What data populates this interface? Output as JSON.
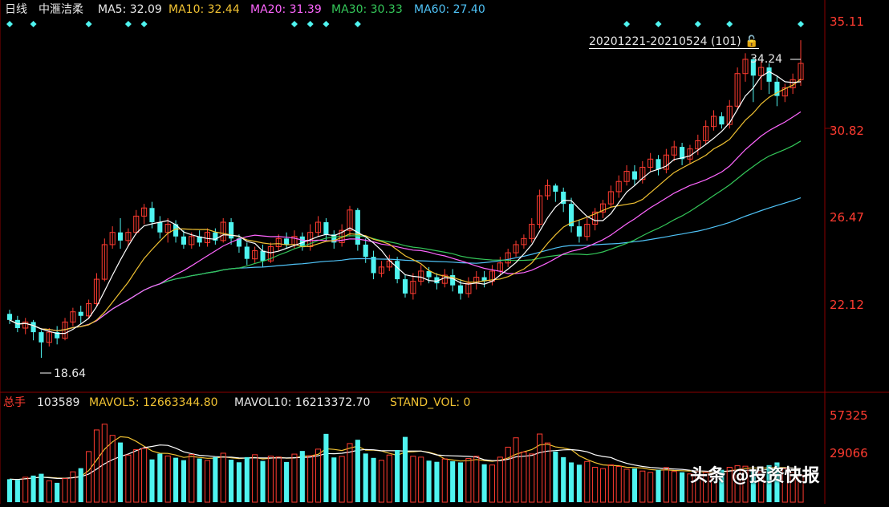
{
  "header": {
    "period": "日线",
    "stock": "中滙洁柔",
    "ma5_label": "MA5:",
    "ma5": "32.09",
    "ma10_label": "MA10:",
    "ma10": "32.44",
    "ma20_label": "MA20:",
    "ma20": "31.39",
    "ma30_label": "MA30:",
    "ma30": "30.33",
    "ma60_label": "MA60:",
    "ma60": "27.40"
  },
  "range_label": "20201221-20210524 (101)",
  "high_label": "34.24",
  "low_label": "18.64",
  "price_axis": [
    "35.11",
    "30.82",
    "26.47",
    "22.12"
  ],
  "volume_header": {
    "label": "总手",
    "total": "103589",
    "mavol5_label": "MAVOL5:",
    "mavol5": "12663344.80",
    "mavol10_label": "MAVOL10:",
    "mavol10": "16213372.70",
    "stand_label": "STAND_VOL:",
    "stand": "0"
  },
  "volume_axis": [
    "57325",
    "29066"
  ],
  "watermark": "头条 @投资快报",
  "colors": {
    "up": "#ff3b30",
    "down": "#4ff4f0",
    "ma5": "#ffffff",
    "ma10": "#f1c232",
    "ma20": "#ff66ff",
    "ma30": "#34c759",
    "ma60": "#4fc3f7",
    "grid": "#8b0000"
  },
  "chart_data": {
    "type": "candlestick",
    "price_ylim": [
      17.5,
      35.11
    ],
    "volume_ylim": [
      0,
      57325
    ],
    "candles": [
      [
        20.8,
        20.5,
        21.0,
        20.3
      ],
      [
        20.5,
        20.1,
        20.7,
        19.9
      ],
      [
        20.1,
        20.4,
        20.6,
        19.8
      ],
      [
        20.4,
        19.9,
        20.5,
        19.5
      ],
      [
        19.9,
        19.4,
        20.0,
        18.64
      ],
      [
        19.4,
        19.9,
        20.1,
        19.2
      ],
      [
        19.9,
        19.6,
        20.2,
        19.3
      ],
      [
        19.6,
        20.4,
        20.6,
        19.5
      ],
      [
        20.4,
        20.9,
        21.1,
        20.2
      ],
      [
        20.9,
        20.7,
        21.2,
        20.3
      ],
      [
        20.7,
        21.3,
        21.5,
        20.6
      ],
      [
        21.3,
        22.5,
        22.8,
        21.2
      ],
      [
        22.5,
        24.2,
        24.5,
        22.4
      ],
      [
        24.2,
        24.8,
        25.1,
        24.0
      ],
      [
        24.8,
        24.4,
        25.5,
        24.0
      ],
      [
        24.4,
        24.8,
        25.0,
        24.1
      ],
      [
        24.8,
        25.6,
        25.9,
        24.7
      ],
      [
        25.6,
        26.0,
        26.2,
        25.2
      ],
      [
        26.0,
        25.3,
        26.3,
        25.0
      ],
      [
        25.3,
        24.8,
        25.6,
        24.5
      ],
      [
        24.8,
        25.2,
        25.5,
        24.3
      ],
      [
        25.2,
        24.6,
        25.4,
        24.3
      ],
      [
        24.6,
        24.2,
        24.9,
        24.0
      ],
      [
        24.2,
        24.6,
        24.8,
        24.0
      ],
      [
        24.6,
        24.3,
        24.9,
        24.1
      ],
      [
        24.3,
        24.8,
        25.0,
        24.1
      ],
      [
        24.8,
        24.4,
        25.0,
        24.2
      ],
      [
        24.4,
        25.3,
        25.5,
        24.3
      ],
      [
        25.3,
        24.5,
        25.5,
        24.2
      ],
      [
        24.5,
        24.1,
        24.7,
        23.8
      ],
      [
        24.1,
        23.5,
        24.3,
        23.2
      ],
      [
        23.5,
        23.9,
        24.1,
        23.3
      ],
      [
        23.9,
        23.4,
        24.2,
        23.1
      ],
      [
        23.4,
        24.1,
        24.3,
        23.3
      ],
      [
        24.1,
        24.5,
        24.7,
        23.9
      ],
      [
        24.5,
        24.2,
        24.8,
        24.0
      ],
      [
        24.2,
        24.6,
        24.9,
        24.0
      ],
      [
        24.6,
        24.1,
        24.8,
        23.9
      ],
      [
        24.1,
        24.8,
        25.2,
        23.9
      ],
      [
        24.8,
        25.3,
        25.6,
        24.6
      ],
      [
        25.3,
        24.7,
        25.5,
        24.4
      ],
      [
        24.7,
        24.3,
        24.9,
        24.0
      ],
      [
        24.3,
        24.9,
        25.2,
        24.1
      ],
      [
        24.9,
        25.9,
        26.1,
        24.6
      ],
      [
        25.9,
        24.2,
        26.0,
        23.9
      ],
      [
        24.2,
        23.6,
        24.5,
        23.3
      ],
      [
        23.6,
        22.8,
        23.9,
        22.5
      ],
      [
        22.8,
        23.1,
        23.4,
        22.6
      ],
      [
        23.1,
        23.4,
        23.7,
        22.9
      ],
      [
        23.4,
        22.5,
        23.6,
        22.3
      ],
      [
        22.5,
        21.8,
        22.7,
        21.6
      ],
      [
        21.8,
        22.4,
        22.8,
        21.5
      ],
      [
        22.4,
        22.9,
        23.2,
        22.2
      ],
      [
        22.9,
        22.6,
        23.1,
        22.3
      ],
      [
        22.6,
        22.3,
        22.8,
        22.0
      ],
      [
        22.3,
        22.7,
        23.0,
        22.1
      ],
      [
        22.7,
        22.2,
        23.0,
        21.9
      ],
      [
        22.2,
        21.8,
        22.5,
        21.5
      ],
      [
        21.8,
        22.3,
        22.6,
        21.6
      ],
      [
        22.3,
        22.6,
        22.9,
        22.0
      ],
      [
        22.6,
        22.4,
        22.9,
        22.1
      ],
      [
        22.4,
        22.9,
        23.2,
        22.2
      ],
      [
        22.9,
        23.3,
        23.6,
        22.7
      ],
      [
        23.3,
        23.8,
        24.0,
        23.1
      ],
      [
        23.8,
        24.2,
        24.4,
        23.6
      ],
      [
        24.2,
        24.5,
        24.7,
        24.0
      ],
      [
        24.5,
        25.2,
        25.5,
        24.3
      ],
      [
        25.2,
        26.6,
        26.9,
        25.0
      ],
      [
        26.6,
        27.1,
        27.4,
        26.4
      ],
      [
        27.1,
        26.8,
        27.2,
        26.3
      ],
      [
        26.8,
        26.2,
        27.0,
        25.8
      ],
      [
        26.2,
        25.1,
        26.5,
        24.8
      ],
      [
        25.1,
        24.6,
        25.4,
        24.3
      ],
      [
        24.6,
        25.2,
        25.5,
        24.4
      ],
      [
        25.2,
        25.8,
        26.0,
        24.9
      ],
      [
        25.8,
        26.2,
        26.4,
        25.5
      ],
      [
        26.2,
        26.8,
        27.1,
        26.0
      ],
      [
        26.8,
        27.3,
        27.6,
        26.5
      ],
      [
        27.3,
        27.8,
        28.1,
        27.1
      ],
      [
        27.8,
        27.4,
        28.1,
        27.1
      ],
      [
        27.4,
        28.0,
        28.3,
        27.2
      ],
      [
        28.0,
        28.4,
        28.7,
        27.8
      ],
      [
        28.4,
        27.9,
        28.6,
        27.6
      ],
      [
        27.9,
        28.6,
        28.9,
        27.7
      ],
      [
        28.6,
        29.0,
        29.3,
        28.3
      ],
      [
        29.0,
        28.4,
        29.2,
        28.1
      ],
      [
        28.4,
        28.9,
        29.1,
        28.2
      ],
      [
        28.9,
        29.3,
        29.6,
        28.6
      ],
      [
        29.3,
        30.0,
        30.3,
        29.1
      ],
      [
        30.0,
        30.5,
        30.8,
        29.8
      ],
      [
        30.5,
        30.1,
        30.7,
        29.9
      ],
      [
        30.1,
        31.0,
        31.3,
        29.9
      ],
      [
        31.0,
        32.6,
        32.9,
        30.8
      ],
      [
        32.6,
        33.3,
        33.6,
        32.2
      ],
      [
        33.3,
        32.5,
        33.4,
        31.2
      ],
      [
        32.5,
        32.9,
        33.2,
        31.8
      ],
      [
        32.9,
        32.2,
        33.1,
        31.6
      ],
      [
        32.2,
        31.5,
        32.5,
        31.0
      ],
      [
        31.5,
        31.9,
        32.1,
        31.2
      ],
      [
        31.9,
        32.3,
        32.6,
        31.6
      ],
      [
        32.3,
        33.1,
        34.24,
        32.0
      ]
    ],
    "volumes": [
      15200,
      14800,
      16500,
      17600,
      18800,
      14200,
      12800,
      15600,
      20100,
      22500,
      33500,
      47800,
      51600,
      44200,
      39500,
      31200,
      34800,
      35600,
      28300,
      32100,
      30600,
      29400,
      27800,
      31500,
      28900,
      27600,
      29800,
      32400,
      28100,
      26400,
      29800,
      31400,
      27300,
      30500,
      29900,
      26600,
      31800,
      33900,
      30700,
      35100,
      45200,
      29600,
      30300,
      38800,
      41300,
      32200,
      29300,
      27700,
      31200,
      34500,
      43200,
      30400,
      29800,
      27500,
      26700,
      28600,
      27100,
      26300,
      28900,
      30400,
      25100,
      24600,
      29800,
      36400,
      42600,
      33200,
      31900,
      45100,
      39200,
      33500,
      29800,
      26300,
      24800,
      26900,
      23100,
      22200,
      24700,
      23600,
      21800,
      22300,
      20600,
      19700,
      21400,
      22900,
      20300,
      19800,
      18700,
      20100,
      19800,
      19200,
      21400,
      23100,
      24100,
      23800,
      21300,
      20100,
      24500,
      26300,
      22100,
      19700,
      17900
    ],
    "xlabel": "",
    "ylabel": ""
  }
}
